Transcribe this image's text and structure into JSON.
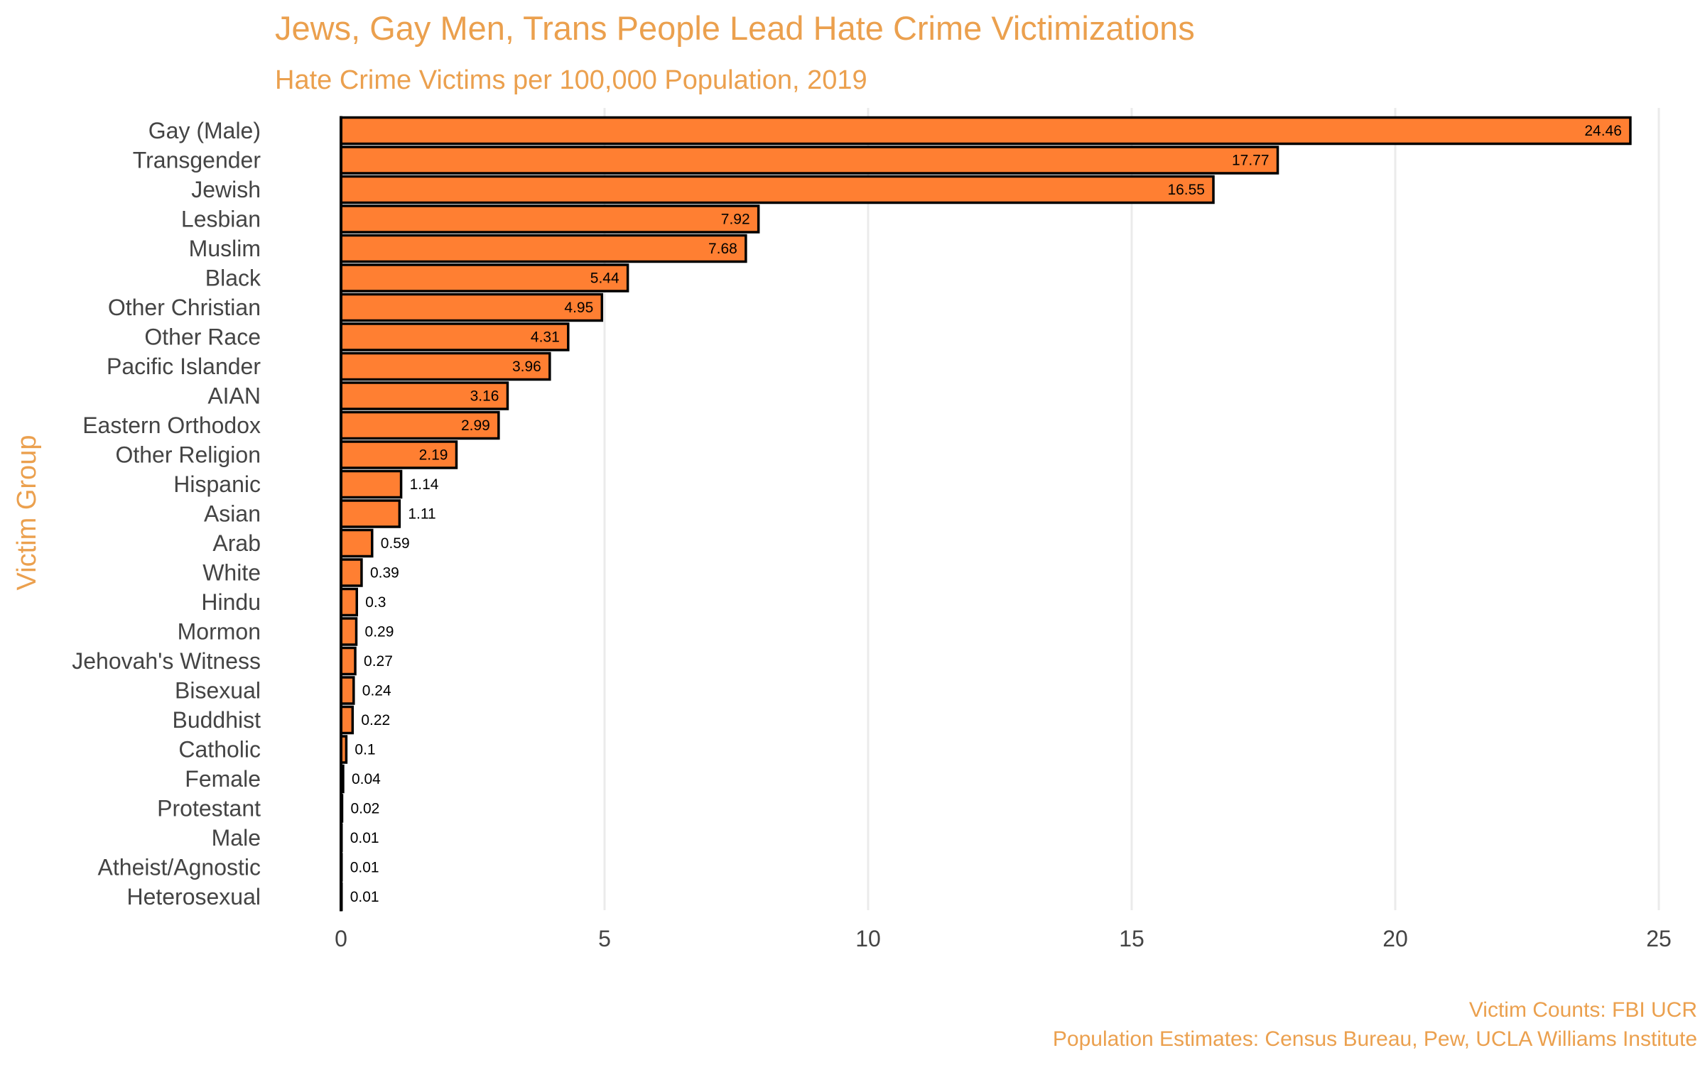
{
  "chart_data": {
    "type": "bar",
    "orientation": "horizontal",
    "title": "Jews, Gay Men, Trans People Lead Hate Crime Victimizations",
    "subtitle": "Hate Crime Victims per 100,000 Population, 2019",
    "xlabel": "",
    "ylabel": "Victim Group",
    "xlim": [
      0,
      25
    ],
    "xticks": [
      0,
      5,
      10,
      15,
      20,
      25
    ],
    "grid": "vertical-major",
    "categories": [
      "Gay (Male)",
      "Transgender",
      "Jewish",
      "Lesbian",
      "Muslim",
      "Black",
      "Other Christian",
      "Other Race",
      "Pacific Islander",
      "AIAN",
      "Eastern Orthodox",
      "Other Religion",
      "Hispanic",
      "Asian",
      "Arab",
      "White",
      "Hindu",
      "Mormon",
      "Jehovah's Witness",
      "Bisexual",
      "Buddhist",
      "Catholic",
      "Female",
      "Protestant",
      "Male",
      "Atheist/Agnostic",
      "Heterosexual"
    ],
    "values": [
      24.46,
      17.77,
      16.55,
      7.92,
      7.68,
      5.44,
      4.95,
      4.31,
      3.96,
      3.16,
      2.99,
      2.19,
      1.14,
      1.11,
      0.59,
      0.39,
      0.3,
      0.29,
      0.27,
      0.24,
      0.22,
      0.1,
      0.04,
      0.02,
      0.01,
      0.01,
      0.01
    ],
    "value_labels": [
      "24.46",
      "17.77",
      "16.55",
      "7.92",
      "7.68",
      "5.44",
      "4.95",
      "4.31",
      "3.96",
      "3.16",
      "2.99",
      "2.19",
      "1.14",
      "1.11",
      "0.59",
      "0.39",
      "0.3",
      "0.29",
      "0.27",
      "0.24",
      "0.22",
      "0.1",
      "0.04",
      "0.02",
      "0.01",
      "0.01",
      "0.01"
    ],
    "colors": {
      "bar": "#FF7F32",
      "bar_outline": "#000000",
      "title": "#EBA04E",
      "grid": "#EBEBEB",
      "axis_text": "#444444"
    },
    "caption": [
      "Victim Counts: FBI UCR",
      "Population Estimates: Census Bureau, Pew, UCLA Williams Institute"
    ]
  }
}
